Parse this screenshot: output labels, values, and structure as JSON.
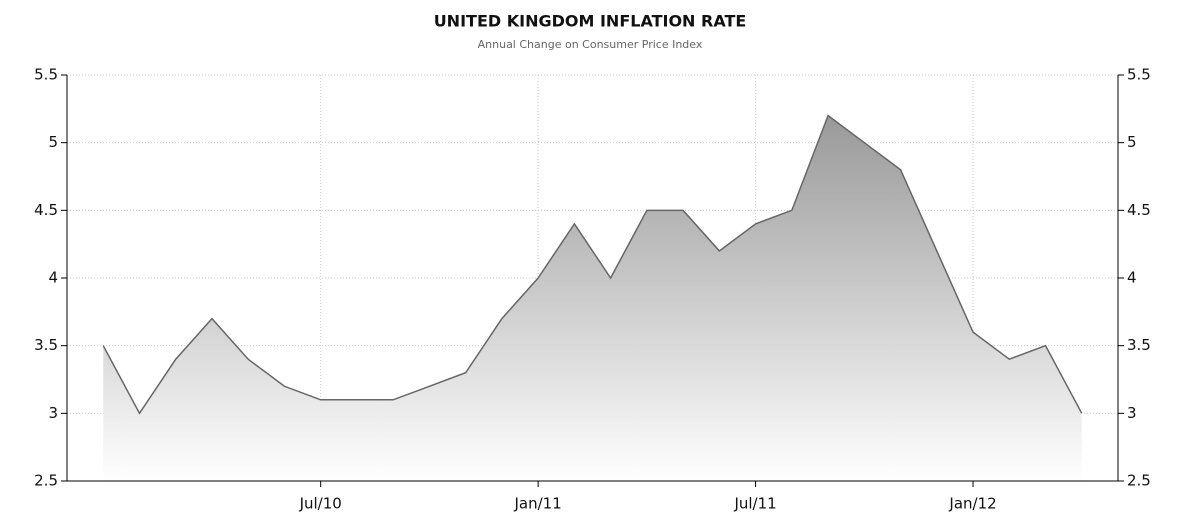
{
  "chart_data": {
    "type": "area",
    "title": "UNITED KINGDOM INFLATION RATE",
    "subtitle": "Annual Change on Consumer Price Index",
    "x": [
      "2010-01",
      "2010-02",
      "2010-03",
      "2010-04",
      "2010-05",
      "2010-06",
      "2010-07",
      "2010-08",
      "2010-09",
      "2010-10",
      "2010-11",
      "2010-12",
      "2011-01",
      "2011-02",
      "2011-03",
      "2011-04",
      "2011-05",
      "2011-06",
      "2011-07",
      "2011-08",
      "2011-09",
      "2011-10",
      "2011-11",
      "2011-12",
      "2012-01",
      "2012-02",
      "2012-03",
      "2012-04"
    ],
    "values": [
      3.5,
      3.0,
      3.4,
      3.7,
      3.4,
      3.2,
      3.1,
      3.1,
      3.1,
      3.2,
      3.3,
      3.7,
      4.0,
      4.4,
      4.0,
      4.5,
      4.5,
      4.2,
      4.4,
      4.5,
      5.2,
      5.0,
      4.8,
      4.2,
      3.6,
      3.4,
      3.5,
      3.0
    ],
    "color": "#666666",
    "xlim": [
      "2009-12",
      "2012-05"
    ],
    "xticks": [
      {
        "value": "2010-07",
        "label": "Jul/10"
      },
      {
        "value": "2011-01",
        "label": "Jan/11"
      },
      {
        "value": "2011-07",
        "label": "Jul/11"
      },
      {
        "value": "2012-01",
        "label": "Jan/12"
      }
    ],
    "ylim": [
      2.5,
      5.5
    ],
    "yticks": [
      2.5,
      3,
      3.5,
      4,
      4.5,
      5,
      5.5
    ],
    "grid": true
  }
}
